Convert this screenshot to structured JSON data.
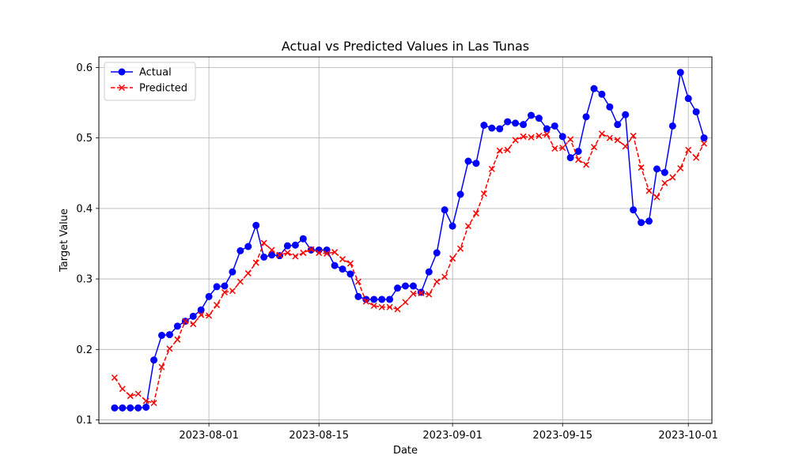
{
  "chart_data": {
    "type": "line",
    "title": "Actual vs Predicted Values in Las Tunas",
    "xlabel": "Date",
    "ylabel": "Target Value",
    "x_start": "2023-07-20",
    "xlim": [
      "2023-07-18",
      "2023-10-04"
    ],
    "ylim": [
      0.095,
      0.615
    ],
    "xticks": [
      "2023-08-01",
      "2023-08-15",
      "2023-09-01",
      "2023-09-15",
      "2023-10-01"
    ],
    "yticks": [
      0.1,
      0.2,
      0.3,
      0.4,
      0.5,
      0.6
    ],
    "grid": true,
    "legend_position": "upper-left",
    "series": [
      {
        "name": "Actual",
        "color": "#0000ff",
        "marker": "circle",
        "linestyle": "solid",
        "values": [
          0.117,
          0.117,
          0.117,
          0.117,
          0.118,
          0.185,
          0.22,
          0.221,
          0.233,
          0.24,
          0.247,
          0.256,
          0.275,
          0.289,
          0.29,
          0.31,
          0.34,
          0.346,
          0.376,
          0.331,
          0.334,
          0.333,
          0.347,
          0.348,
          0.357,
          0.341,
          0.341,
          0.341,
          0.319,
          0.314,
          0.307,
          0.275,
          0.271,
          0.271,
          0.271,
          0.271,
          0.287,
          0.29,
          0.29,
          0.281,
          0.31,
          0.337,
          0.398,
          0.375,
          0.42,
          0.467,
          0.464,
          0.518,
          0.514,
          0.513,
          0.523,
          0.521,
          0.519,
          0.532,
          0.528,
          0.513,
          0.517,
          0.502,
          0.472,
          0.481,
          0.53,
          0.57,
          0.562,
          0.544,
          0.519,
          0.533,
          0.398,
          0.38,
          0.382,
          0.456,
          0.451,
          0.517,
          0.593,
          0.556,
          0.537,
          0.5
        ]
      },
      {
        "name": "Predicted",
        "color": "#ff0000",
        "marker": "x",
        "linestyle": "dashed",
        "values": [
          0.16,
          0.144,
          0.134,
          0.137,
          0.127,
          0.124,
          0.175,
          0.201,
          0.214,
          0.24,
          0.236,
          0.249,
          0.248,
          0.263,
          0.281,
          0.283,
          0.296,
          0.308,
          0.323,
          0.351,
          0.341,
          0.334,
          0.337,
          0.332,
          0.337,
          0.342,
          0.337,
          0.336,
          0.338,
          0.328,
          0.322,
          0.296,
          0.268,
          0.262,
          0.26,
          0.26,
          0.257,
          0.267,
          0.279,
          0.28,
          0.278,
          0.296,
          0.303,
          0.329,
          0.343,
          0.375,
          0.393,
          0.421,
          0.456,
          0.482,
          0.483,
          0.497,
          0.502,
          0.501,
          0.503,
          0.505,
          0.485,
          0.486,
          0.498,
          0.469,
          0.462,
          0.487,
          0.506,
          0.5,
          0.497,
          0.488,
          0.503,
          0.458,
          0.425,
          0.416,
          0.436,
          0.444,
          0.457,
          0.483,
          0.472,
          0.492
        ]
      }
    ]
  }
}
